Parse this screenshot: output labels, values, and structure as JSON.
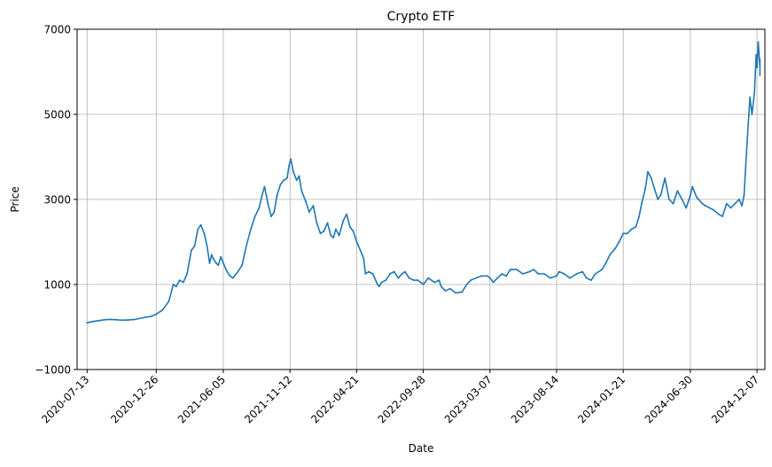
{
  "chart_data": {
    "type": "line",
    "title": "Crypto ETF",
    "xlabel": "Date",
    "ylabel": "Price",
    "ylim": [
      -1000,
      7000
    ],
    "yticks": [
      -1000,
      1000,
      3000,
      5000,
      7000
    ],
    "ytick_labels": [
      "−1000",
      "1000",
      "3000",
      "5000",
      "7000"
    ],
    "xlim": [
      "2020-06-19",
      "2024-12-26"
    ],
    "xticks": [
      "2020-07-13",
      "2020-12-26",
      "2021-06-05",
      "2021-11-12",
      "2022-04-21",
      "2022-09-28",
      "2023-03-07",
      "2023-08-14",
      "2024-01-21",
      "2024-06-30",
      "2024-12-07"
    ],
    "grid": true,
    "series": [
      {
        "color": "#1f77b4",
        "x": [
          "2020-07-13",
          "2020-07-27",
          "2020-08-10",
          "2020-08-24",
          "2020-09-07",
          "2020-09-21",
          "2020-10-05",
          "2020-10-19",
          "2020-11-02",
          "2020-11-16",
          "2020-11-30",
          "2020-12-14",
          "2020-12-26",
          "2021-01-10",
          "2021-01-25",
          "2021-02-05",
          "2021-02-12",
          "2021-02-20",
          "2021-03-01",
          "2021-03-10",
          "2021-03-20",
          "2021-03-28",
          "2021-04-05",
          "2021-04-12",
          "2021-04-20",
          "2021-04-27",
          "2021-05-03",
          "2021-05-08",
          "2021-05-12",
          "2021-05-19",
          "2021-05-24",
          "2021-05-30",
          "2021-06-05",
          "2021-06-14",
          "2021-06-21",
          "2021-06-28",
          "2021-07-10",
          "2021-07-20",
          "2021-07-30",
          "2021-08-10",
          "2021-08-20",
          "2021-08-30",
          "2021-09-06",
          "2021-09-12",
          "2021-09-20",
          "2021-09-28",
          "2021-10-05",
          "2021-10-12",
          "2021-10-20",
          "2021-10-28",
          "2021-11-05",
          "2021-11-10",
          "2021-11-14",
          "2021-11-20",
          "2021-11-28",
          "2021-12-04",
          "2021-12-10",
          "2021-12-20",
          "2021-12-28",
          "2022-01-07",
          "2022-01-15",
          "2022-01-24",
          "2022-02-01",
          "2022-02-10",
          "2022-02-18",
          "2022-02-24",
          "2022-03-02",
          "2022-03-10",
          "2022-03-20",
          "2022-03-28",
          "2022-04-05",
          "2022-04-13",
          "2022-04-21",
          "2022-04-30",
          "2022-05-08",
          "2022-05-12",
          "2022-05-20",
          "2022-05-30",
          "2022-06-10",
          "2022-06-14",
          "2022-06-20",
          "2022-06-30",
          "2022-07-10",
          "2022-07-20",
          "2022-07-30",
          "2022-08-08",
          "2022-08-15",
          "2022-08-25",
          "2022-09-05",
          "2022-09-15",
          "2022-09-28",
          "2022-10-10",
          "2022-10-25",
          "2022-11-05",
          "2022-11-10",
          "2022-11-20",
          "2022-12-01",
          "2022-12-15",
          "2022-12-30",
          "2023-01-10",
          "2023-01-20",
          "2023-02-01",
          "2023-02-15",
          "2023-03-01",
          "2023-03-07",
          "2023-03-15",
          "2023-03-25",
          "2023-04-05",
          "2023-04-15",
          "2023-04-25",
          "2023-05-10",
          "2023-05-25",
          "2023-06-10",
          "2023-06-20",
          "2023-07-01",
          "2023-07-15",
          "2023-07-30",
          "2023-08-14",
          "2023-08-20",
          "2023-09-01",
          "2023-09-15",
          "2023-10-01",
          "2023-10-15",
          "2023-10-25",
          "2023-11-05",
          "2023-11-15",
          "2023-12-01",
          "2023-12-10",
          "2023-12-20",
          "2024-01-02",
          "2024-01-11",
          "2024-01-21",
          "2024-01-31",
          "2024-02-10",
          "2024-02-20",
          "2024-02-28",
          "2024-03-05",
          "2024-03-14",
          "2024-03-20",
          "2024-03-28",
          "2024-04-05",
          "2024-04-13",
          "2024-04-20",
          "2024-04-30",
          "2024-05-10",
          "2024-05-20",
          "2024-05-30",
          "2024-06-10",
          "2024-06-20",
          "2024-06-30",
          "2024-07-05",
          "2024-07-15",
          "2024-07-29",
          "2024-08-05",
          "2024-08-15",
          "2024-08-25",
          "2024-09-06",
          "2024-09-15",
          "2024-09-25",
          "2024-10-05",
          "2024-10-15",
          "2024-10-25",
          "2024-11-01",
          "2024-11-06",
          "2024-11-10",
          "2024-11-13",
          "2024-11-20",
          "2024-11-25",
          "2024-12-01",
          "2024-12-05",
          "2024-12-07",
          "2024-12-10",
          "2024-12-14"
        ],
        "y": [
          100,
          130,
          150,
          170,
          180,
          170,
          160,
          165,
          175,
          200,
          230,
          250,
          300,
          400,
          600,
          1000,
          950,
          1100,
          1050,
          1250,
          1800,
          1900,
          2300,
          2400,
          2200,
          1900,
          1500,
          1700,
          1600,
          1500,
          1450,
          1650,
          1500,
          1300,
          1200,
          1150,
          1300,
          1450,
          1900,
          2300,
          2600,
          2800,
          3100,
          3300,
          2900,
          2600,
          2700,
          3100,
          3350,
          3450,
          3500,
          3800,
          3950,
          3650,
          3450,
          3550,
          3200,
          2950,
          2700,
          2850,
          2450,
          2200,
          2250,
          2450,
          2150,
          2100,
          2300,
          2150,
          2500,
          2650,
          2350,
          2250,
          2000,
          1800,
          1600,
          1250,
          1300,
          1250,
          1000,
          950,
          1050,
          1100,
          1250,
          1300,
          1150,
          1250,
          1300,
          1150,
          1100,
          1100,
          1000,
          1150,
          1050,
          1100,
          950,
          850,
          900,
          800,
          820,
          1000,
          1100,
          1150,
          1200,
          1200,
          1150,
          1050,
          1150,
          1250,
          1200,
          1350,
          1350,
          1250,
          1300,
          1350,
          1250,
          1250,
          1150,
          1200,
          1300,
          1250,
          1150,
          1250,
          1300,
          1150,
          1100,
          1250,
          1350,
          1500,
          1700,
          1850,
          2000,
          2200,
          2200,
          2300,
          2350,
          2600,
          2900,
          3250,
          3650,
          3500,
          3250,
          3000,
          3100,
          3500,
          3000,
          2900,
          3200,
          3000,
          2800,
          3100,
          3300,
          3050,
          2900,
          2850,
          2800,
          2750,
          2650,
          2600,
          2900,
          2800,
          2900,
          3000,
          2850,
          3100,
          3800,
          4300,
          5400,
          5000,
          5500,
          6400,
          6100,
          6700,
          6100
        ],
        "ymarks": [
          6300,
          5900
        ]
      }
    ]
  }
}
